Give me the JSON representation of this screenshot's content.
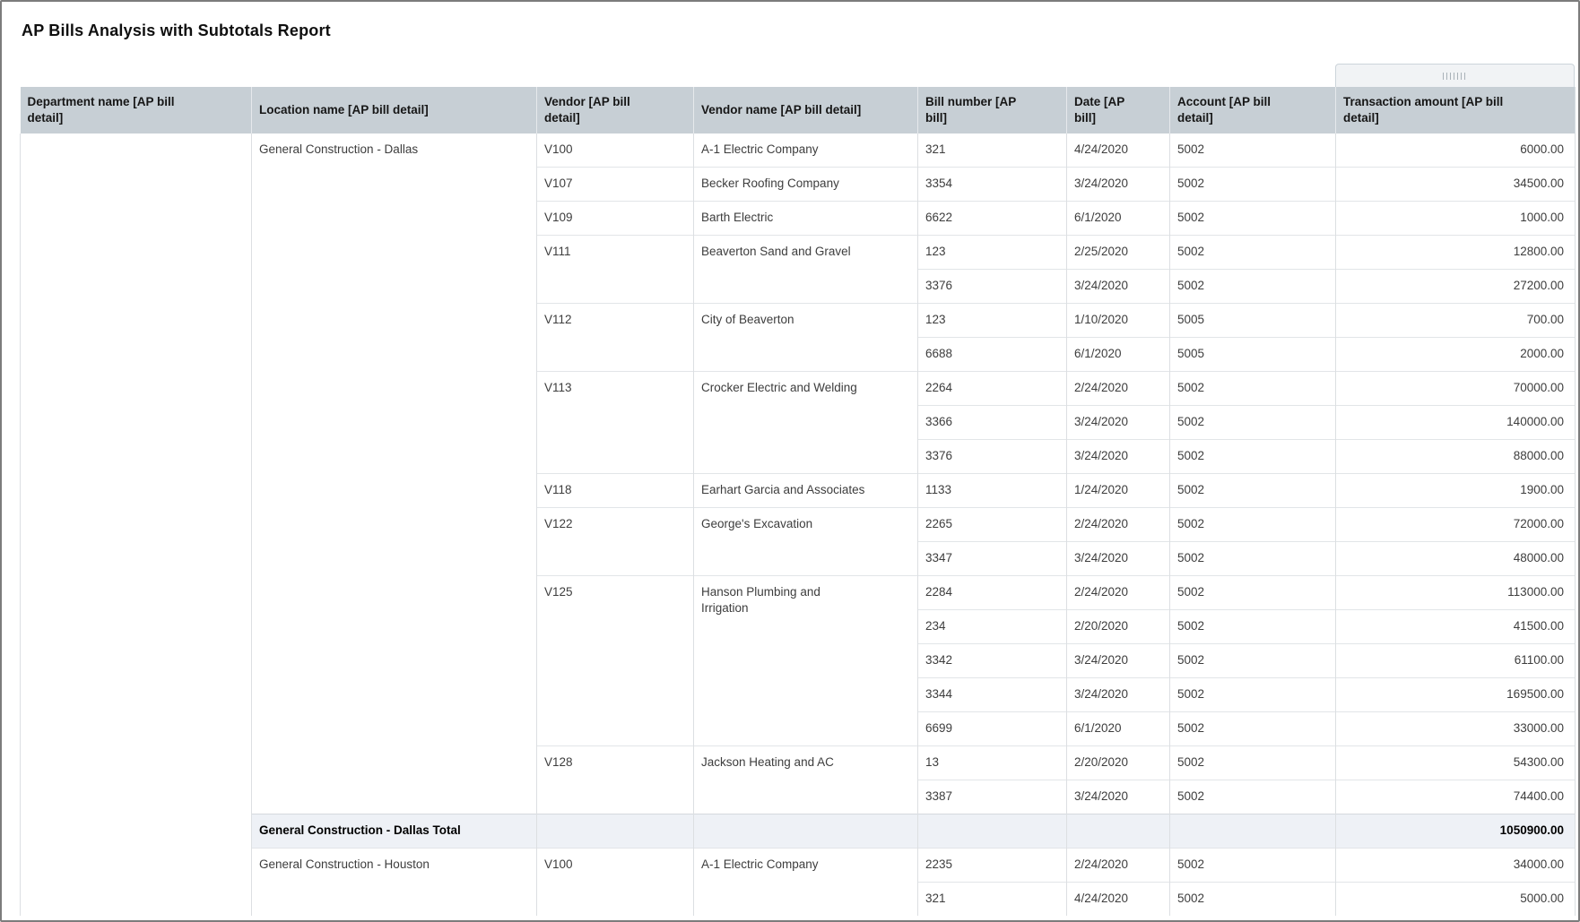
{
  "window": {
    "title": "AP Bills Analysis with Subtotals Report"
  },
  "colors": {
    "header_bg": "#c7cfd5",
    "subtotal_bg": "#eef1f6",
    "row_border": "#e2e5e8",
    "column_border": "#dcdfe2",
    "window_border": "#7c7c7c",
    "widget_bg": "#f1f3f5",
    "body_text": "#3d3d3d"
  },
  "column_widget": {
    "icon": "grip-bars"
  },
  "table": {
    "columns": [
      {
        "key": "department",
        "label": "Department name [AP bill detail]"
      },
      {
        "key": "location",
        "label": "Location name [AP bill detail]"
      },
      {
        "key": "vendor",
        "label": "Vendor [AP bill detail]"
      },
      {
        "key": "vendor-name",
        "label": "Vendor name [AP bill detail]"
      },
      {
        "key": "bill-number",
        "label": "Bill number [AP bill]"
      },
      {
        "key": "date",
        "label": "Date [AP bill]"
      },
      {
        "key": "account",
        "label": "Account [AP bill detail]"
      },
      {
        "key": "amount",
        "label": "Transaction amount [AP bill detail]"
      }
    ],
    "department_value": "",
    "groups": [
      {
        "location": "General Construction - Dallas",
        "vendors": [
          {
            "code": "V100",
            "name": "A-1 Electric Company",
            "bills": [
              [
                "321",
                "4/24/2020",
                "5002",
                "6000.00"
              ]
            ]
          },
          {
            "code": "V107",
            "name": "Becker Roofing Company",
            "bills": [
              [
                "3354",
                "3/24/2020",
                "5002",
                "34500.00"
              ]
            ]
          },
          {
            "code": "V109",
            "name": "Barth Electric",
            "bills": [
              [
                "6622",
                "6/1/2020",
                "5002",
                "1000.00"
              ]
            ]
          },
          {
            "code": "V111",
            "name": "Beaverton Sand and Gravel",
            "bills": [
              [
                "123",
                "2/25/2020",
                "5002",
                "12800.00"
              ],
              [
                "3376",
                "3/24/2020",
                "5002",
                "27200.00"
              ]
            ]
          },
          {
            "code": "V112",
            "name": "City of Beaverton",
            "bills": [
              [
                "123",
                "1/10/2020",
                "5005",
                "700.00"
              ],
              [
                "6688",
                "6/1/2020",
                "5005",
                "2000.00"
              ]
            ]
          },
          {
            "code": "V113",
            "name": "Crocker Electric and Welding",
            "bills": [
              [
                "2264",
                "2/24/2020",
                "5002",
                "70000.00"
              ],
              [
                "3366",
                "3/24/2020",
                "5002",
                "140000.00"
              ],
              [
                "3376",
                "3/24/2020",
                "5002",
                "88000.00"
              ]
            ]
          },
          {
            "code": "V118",
            "name": "Earhart Garcia and Associates",
            "bills": [
              [
                "1133",
                "1/24/2020",
                "5002",
                "1900.00"
              ]
            ]
          },
          {
            "code": "V122",
            "name": "George's Excavation",
            "bills": [
              [
                "2265",
                "2/24/2020",
                "5002",
                "72000.00"
              ],
              [
                "3347",
                "3/24/2020",
                "5002",
                "48000.00"
              ]
            ]
          },
          {
            "code": "V125",
            "name": "Hanson Plumbing and Irrigation",
            "bills": [
              [
                "2284",
                "2/24/2020",
                "5002",
                "113000.00"
              ],
              [
                "234",
                "2/20/2020",
                "5002",
                "41500.00"
              ],
              [
                "3342",
                "3/24/2020",
                "5002",
                "61100.00"
              ],
              [
                "3344",
                "3/24/2020",
                "5002",
                "169500.00"
              ],
              [
                "6699",
                "6/1/2020",
                "5002",
                "33000.00"
              ]
            ]
          },
          {
            "code": "V128",
            "name": "Jackson Heating and AC",
            "bills": [
              [
                "13",
                "2/20/2020",
                "5002",
                "54300.00"
              ],
              [
                "3387",
                "3/24/2020",
                "5002",
                "74400.00"
              ]
            ]
          }
        ],
        "total": {
          "label": "General Construction - Dallas Total",
          "amount": "1050900.00"
        }
      },
      {
        "location": "General Construction - Houston",
        "vendors": [
          {
            "code": "V100",
            "name": "A-1 Electric Company",
            "bills": [
              [
                "2235",
                "2/24/2020",
                "5002",
                "34000.00"
              ],
              [
                "321",
                "4/24/2020",
                "5002",
                "5000.00"
              ]
            ]
          }
        ]
      }
    ]
  }
}
